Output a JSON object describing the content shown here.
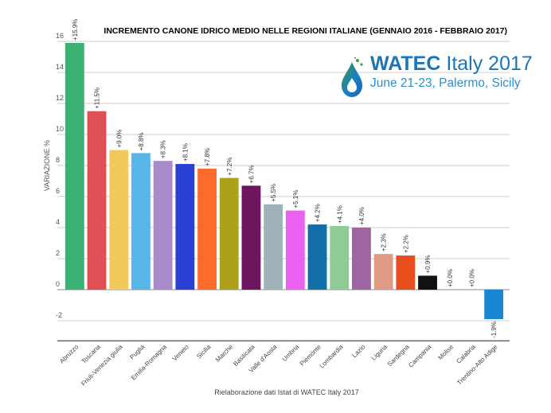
{
  "chart_data": {
    "type": "bar",
    "title": "INCREMENTO CANONE IDRICO MEDIO NELLE REGIONI ITALIANE (GENNAIO 2016 - FEBBRAIO 2017)",
    "xlabel": "",
    "ylabel": "VARIAZIONE %",
    "ylim": [
      -3.3,
      16.6
    ],
    "yticks": [
      16,
      14,
      12,
      10,
      8,
      6,
      4,
      2,
      0,
      -2
    ],
    "grid": true,
    "categories": [
      "Abruzzo",
      "Toscana",
      "Friuli-Venezia giulia",
      "Puglia",
      "Emilia-Romagna",
      "Veneto",
      "Sicilia",
      "Marche",
      "Basilicata",
      "Valle d'Aosta",
      "Umbria",
      "Piemonte",
      "Lombardia",
      "Lazio",
      "Liguria",
      "Sardegna",
      "Campania",
      "Molise",
      "Calabria",
      "Trentino-Alto Adige"
    ],
    "values": [
      15.9,
      11.5,
      9.0,
      8.8,
      8.3,
      8.1,
      7.8,
      7.2,
      6.7,
      5.5,
      5.1,
      4.2,
      4.1,
      4.0,
      2.3,
      2.2,
      0.9,
      0.0,
      0.0,
      -1.9
    ],
    "data_labels": [
      "+15.9%",
      "+11.5%",
      "+9.0%",
      "+8.8%",
      "+8.3%",
      "+8.1%",
      "+7.8%",
      "+7.2%",
      "+6.7%",
      "+5.5%",
      "+5.1%",
      "+4.2%",
      "+4.1%",
      "+4.0%",
      "+2.3%",
      "+2.2%",
      "+0.9%",
      "+0.0%",
      "+0.0%",
      "-1.9%"
    ],
    "colors": [
      "#3bb273",
      "#e04f54",
      "#f0c95a",
      "#58b5e8",
      "#a98bcb",
      "#2a3fd6",
      "#fd6a2c",
      "#ada01b",
      "#6e1760",
      "#9fb2ba",
      "#ea61f0",
      "#136fa8",
      "#8fcb95",
      "#9d66a2",
      "#de9a82",
      "#e84e1b",
      "#111111",
      "#cccccc",
      "#cccccc",
      "#1787d0"
    ],
    "source_note": "Rielaborazione dati Istat di WATEC Italy 2017"
  },
  "logo": {
    "name_bold": "WATEC",
    "name_rest": " Italy 2017",
    "subtitle": "June 21-23, Palermo, Sicily"
  }
}
